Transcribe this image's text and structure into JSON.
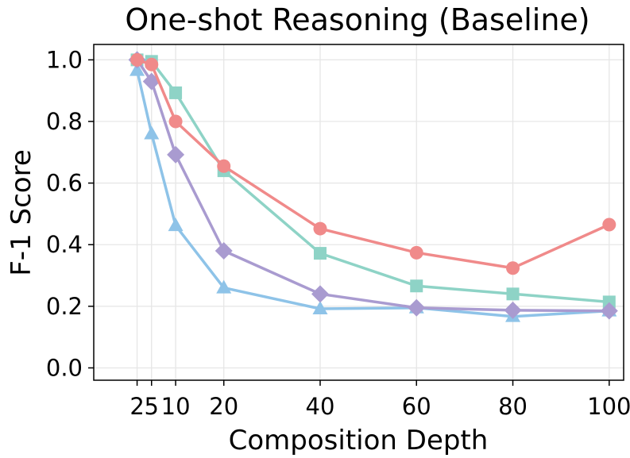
{
  "chart_data": {
    "type": "line",
    "title": "One-shot Reasoning (Baseline)",
    "xlabel": "Composition Depth",
    "ylabel": "F-1 Score",
    "x": [
      2,
      5,
      10,
      20,
      40,
      60,
      80,
      100
    ],
    "xticks": [
      2,
      5,
      10,
      20,
      40,
      60,
      80,
      100
    ],
    "xtick_labels": [
      "2",
      "5",
      "10",
      "20",
      "40",
      "60",
      "80",
      "100"
    ],
    "yticks": [
      0.0,
      0.2,
      0.4,
      0.6,
      0.8,
      1.0
    ],
    "ytick_labels": [
      "0.0",
      "0.2",
      "0.4",
      "0.6",
      "0.8",
      "1.0"
    ],
    "xlim": [
      -7,
      103
    ],
    "ylim": [
      -0.04,
      1.05
    ],
    "grid": true,
    "legend": "none",
    "series": [
      {
        "name": "series-teal-square",
        "marker": "square",
        "color": "#8ed3c6",
        "values": [
          1.0,
          0.995,
          0.893,
          0.64,
          0.372,
          0.266,
          0.24,
          0.214
        ]
      },
      {
        "name": "series-blue-triangle",
        "marker": "triangle",
        "color": "#8ec3e8",
        "values": [
          0.966,
          0.76,
          0.462,
          0.26,
          0.192,
          0.195,
          0.167,
          0.185
        ]
      },
      {
        "name": "series-purple-diamond",
        "marker": "diamond",
        "color": "#a99bd0",
        "values": [
          1.0,
          0.93,
          0.692,
          0.38,
          0.24,
          0.195,
          0.187,
          0.185
        ]
      },
      {
        "name": "series-red-circle",
        "marker": "circle",
        "color": "#f08a8a",
        "values": [
          1.0,
          0.985,
          0.8,
          0.655,
          0.452,
          0.374,
          0.324,
          0.465
        ]
      }
    ]
  }
}
